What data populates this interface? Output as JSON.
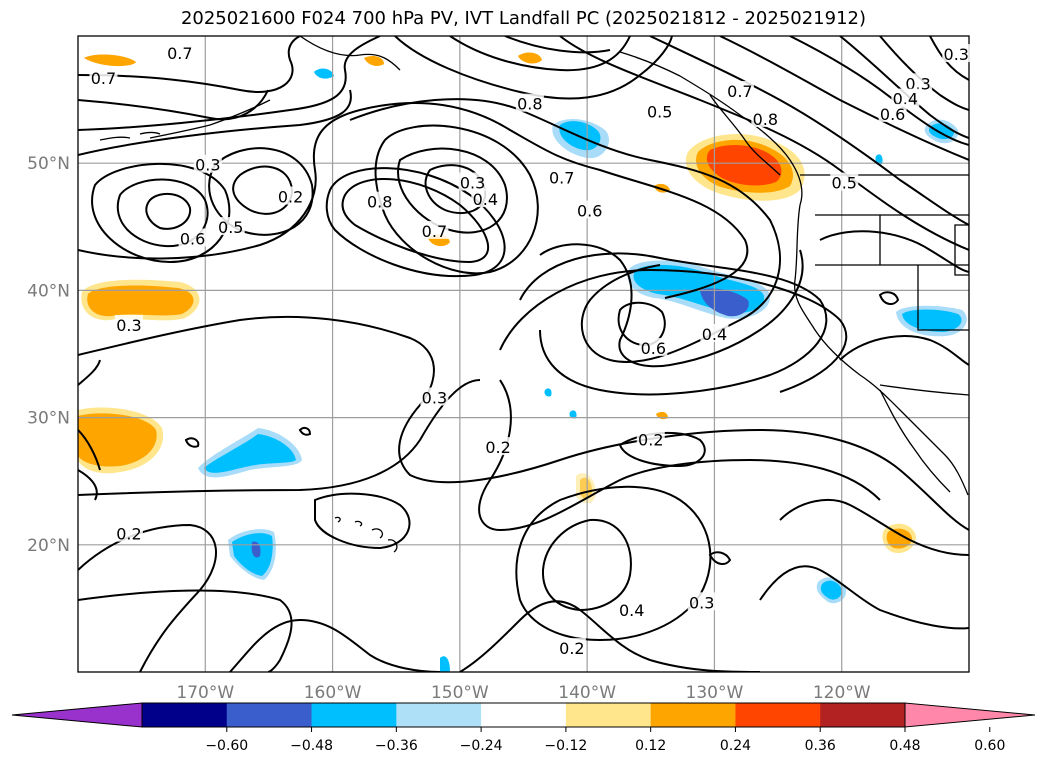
{
  "title": "2025021600 F024 700 hPa PV, IVT Landfall PC (2025021812 - 2025021912)",
  "map": {
    "lon_range": [
      -180,
      -110
    ],
    "lat_range": [
      10,
      60
    ],
    "lon_ticks": [
      {
        "lon": -170,
        "label": "170°W"
      },
      {
        "lon": -160,
        "label": "160°W"
      },
      {
        "lon": -150,
        "label": "150°W"
      },
      {
        "lon": -140,
        "label": "140°W"
      },
      {
        "lon": -130,
        "label": "130°W"
      },
      {
        "lon": -120,
        "label": "120°W"
      }
    ],
    "lat_ticks": [
      {
        "lat": 20,
        "label": "20°N"
      },
      {
        "lat": 30,
        "label": "30°N"
      },
      {
        "lat": 40,
        "label": "40°N"
      },
      {
        "lat": 50,
        "label": "50°N"
      }
    ],
    "grid": true,
    "contour_labels": [
      {
        "text": "0.7",
        "lon": -172.0,
        "lat": 58.6
      },
      {
        "text": "0.7",
        "lon": -178.0,
        "lat": 56.6
      },
      {
        "text": "0.8",
        "lon": -144.5,
        "lat": 54.6
      },
      {
        "text": "0.5",
        "lon": -134.3,
        "lat": 54.0
      },
      {
        "text": "0.7",
        "lon": -128.0,
        "lat": 55.6
      },
      {
        "text": "0.8",
        "lon": -126.0,
        "lat": 53.4
      },
      {
        "text": "0.3",
        "lon": -111.0,
        "lat": 58.5
      },
      {
        "text": "0.3",
        "lon": -114.0,
        "lat": 56.2
      },
      {
        "text": "0.4",
        "lon": -115.0,
        "lat": 55.0
      },
      {
        "text": "0.6",
        "lon": -116.0,
        "lat": 53.8
      },
      {
        "text": "0.3",
        "lon": -169.8,
        "lat": 49.8
      },
      {
        "text": "0.2",
        "lon": -163.3,
        "lat": 47.3
      },
      {
        "text": "0.5",
        "lon": -168.0,
        "lat": 44.9
      },
      {
        "text": "0.6",
        "lon": -171.0,
        "lat": 44.0
      },
      {
        "text": "0.3",
        "lon": -149.0,
        "lat": 48.4
      },
      {
        "text": "0.4",
        "lon": -148.0,
        "lat": 47.1
      },
      {
        "text": "0.8",
        "lon": -156.3,
        "lat": 46.9
      },
      {
        "text": "0.7",
        "lon": -152.0,
        "lat": 44.6
      },
      {
        "text": "0.7",
        "lon": -142.0,
        "lat": 48.8
      },
      {
        "text": "0.6",
        "lon": -139.8,
        "lat": 46.2
      },
      {
        "text": "0.5",
        "lon": -119.8,
        "lat": 48.4
      },
      {
        "text": "0.3",
        "lon": -176.0,
        "lat": 37.2
      },
      {
        "text": "0.6",
        "lon": -134.8,
        "lat": 35.4
      },
      {
        "text": "0.4",
        "lon": -130.0,
        "lat": 36.5
      },
      {
        "text": "0.3",
        "lon": -152.0,
        "lat": 31.5
      },
      {
        "text": "0.2",
        "lon": -147.0,
        "lat": 27.6
      },
      {
        "text": "0.2",
        "lon": -135.0,
        "lat": 28.2
      },
      {
        "text": "0.2",
        "lon": -176.0,
        "lat": 20.8
      },
      {
        "text": "0.4",
        "lon": -136.5,
        "lat": 14.8
      },
      {
        "text": "0.3",
        "lon": -131.0,
        "lat": 15.4
      },
      {
        "text": "0.2",
        "lon": -141.2,
        "lat": 11.8
      }
    ],
    "shading_colors": {
      "orange": "#ffa500",
      "light_orange": "#ffe68c",
      "red_orange": "#ff4500",
      "sky_blue": "#00bfff",
      "light_blue": "#a8dcf8",
      "medium_blue": "#3a5fcd"
    }
  },
  "colorbar": {
    "labels": [
      "−0.60",
      "−0.48",
      "−0.36",
      "−0.24",
      "−0.12",
      "0.12",
      "0.24",
      "0.36",
      "0.48",
      "0.60"
    ],
    "colors": [
      "#9932cc",
      "#00008b",
      "#3a5fcd",
      "#00bfff",
      "#aee0f8",
      "#ffffff",
      "#ffe68c",
      "#ffa500",
      "#ff4500",
      "#b22222",
      "#ff88aa"
    ]
  }
}
